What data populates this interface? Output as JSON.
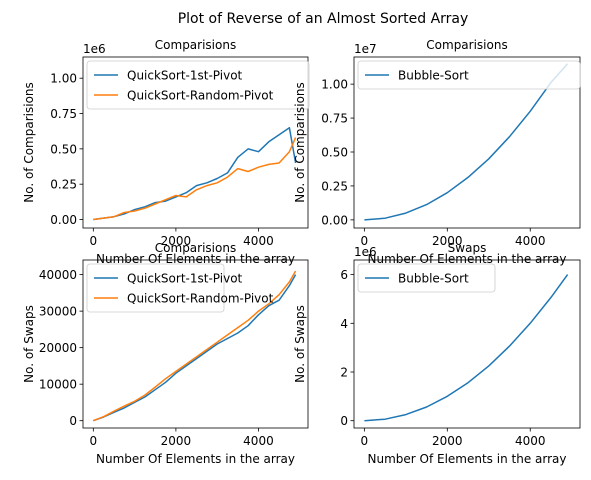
{
  "figure": {
    "suptitle": "Plot of Reverse of an Almost Sorted Array"
  },
  "colors": {
    "series_1": "#1f77b4",
    "series_2": "#ff7f0e"
  },
  "chart_data": [
    {
      "type": "line",
      "title": "Comparisions",
      "xlabel": "Number Of Elements in the array",
      "ylabel": "No. of Comparisions",
      "offset_text": "1e6",
      "xlim": [
        -250,
        5200
      ],
      "ylim": [
        -0.06,
        1.15
      ],
      "xticks": [
        0,
        2000,
        4000
      ],
      "xtick_labels": [
        "0",
        "2000",
        "4000"
      ],
      "yticks": [
        0,
        0.25,
        0.5,
        0.75,
        1.0
      ],
      "ytick_labels": [
        "0.00",
        "0.25",
        "0.50",
        "0.75",
        "1.00"
      ],
      "grid": false,
      "legend": "upper left",
      "series": [
        {
          "name": "QuickSort-1st-Pivot",
          "color": "#1f77b4",
          "x": [
            0,
            250,
            500,
            750,
            1000,
            1250,
            1500,
            1750,
            2000,
            2250,
            2500,
            2750,
            3000,
            3250,
            3500,
            3750,
            4000,
            4250,
            4500,
            4750,
            4900
          ],
          "y": [
            0.0,
            0.01,
            0.02,
            0.04,
            0.07,
            0.09,
            0.12,
            0.13,
            0.16,
            0.19,
            0.24,
            0.26,
            0.29,
            0.33,
            0.44,
            0.5,
            0.48,
            0.55,
            0.6,
            0.65,
            0.4
          ]
        },
        {
          "name": "QuickSort-Random-Pivot",
          "color": "#ff7f0e",
          "x": [
            0,
            250,
            500,
            750,
            1000,
            1250,
            1500,
            1750,
            2000,
            2250,
            2500,
            2750,
            3000,
            3250,
            3500,
            3750,
            4000,
            4250,
            4500,
            4750,
            4900
          ],
          "y": [
            0.0,
            0.01,
            0.02,
            0.05,
            0.06,
            0.08,
            0.11,
            0.14,
            0.17,
            0.16,
            0.21,
            0.24,
            0.26,
            0.3,
            0.36,
            0.34,
            0.37,
            0.39,
            0.4,
            0.48,
            0.58
          ]
        }
      ]
    },
    {
      "type": "line",
      "title": "Comparisions",
      "xlabel": "Number Of Elements in the array",
      "ylabel": "No. of Comparisions",
      "offset_text": "1e7",
      "xlim": [
        -250,
        5200
      ],
      "ylim": [
        -0.06,
        1.2
      ],
      "xticks": [
        0,
        2000,
        4000
      ],
      "xtick_labels": [
        "0",
        "2000",
        "4000"
      ],
      "yticks": [
        0,
        0.25,
        0.5,
        0.75,
        1.0
      ],
      "ytick_labels": [
        "0.00",
        "0.25",
        "0.50",
        "0.75",
        "1.00"
      ],
      "grid": false,
      "legend": "upper left",
      "series": [
        {
          "name": "Bubble-Sort",
          "color": "#1f77b4",
          "x": [
            0,
            500,
            1000,
            1500,
            2000,
            2500,
            3000,
            3500,
            4000,
            4500,
            4900
          ],
          "y": [
            0.0,
            0.0125,
            0.05,
            0.1125,
            0.2,
            0.3125,
            0.45,
            0.6125,
            0.8,
            1.0125,
            1.15
          ]
        }
      ]
    },
    {
      "type": "line",
      "title": "Comparisions",
      "xlabel": "Number Of Elements in the array",
      "ylabel": "No. of Swaps",
      "offset_text": "",
      "xlim": [
        -250,
        5200
      ],
      "ylim": [
        -2000,
        44000
      ],
      "xticks": [
        0,
        2000,
        4000
      ],
      "xtick_labels": [
        "0",
        "2000",
        "4000"
      ],
      "yticks": [
        0,
        10000,
        20000,
        30000,
        40000
      ],
      "ytick_labels": [
        "0",
        "10000",
        "20000",
        "30000",
        "40000"
      ],
      "grid": false,
      "legend": "upper left",
      "series": [
        {
          "name": "QuickSort-1st-Pivot",
          "color": "#1f77b4",
          "x": [
            0,
            250,
            500,
            750,
            1000,
            1250,
            1500,
            1750,
            2000,
            2250,
            2500,
            2750,
            3000,
            3250,
            3500,
            3750,
            4000,
            4250,
            4500,
            4750,
            4900
          ],
          "y": [
            0,
            1000,
            2300,
            3500,
            5000,
            6500,
            8500,
            10500,
            13000,
            15000,
            17000,
            19000,
            21000,
            22500,
            24000,
            26000,
            29000,
            31500,
            33000,
            37000,
            40000
          ]
        },
        {
          "name": "QuickSort-Random-Pivot",
          "color": "#ff7f0e",
          "x": [
            0,
            250,
            500,
            750,
            1000,
            1250,
            1500,
            1750,
            2000,
            2250,
            2500,
            2750,
            3000,
            3250,
            3500,
            3750,
            4000,
            4250,
            4500,
            4750,
            4900
          ],
          "y": [
            0,
            1100,
            2600,
            4000,
            5300,
            7000,
            9200,
            11500,
            13500,
            15500,
            17500,
            19500,
            21500,
            23500,
            25500,
            27500,
            30000,
            32000,
            34500,
            38000,
            41000
          ]
        }
      ]
    },
    {
      "type": "line",
      "title": "Swaps",
      "xlabel": "Number Of Elements in the array",
      "ylabel": "No. of Swaps",
      "offset_text": "1e6",
      "xlim": [
        -250,
        5200
      ],
      "ylim": [
        -0.3,
        6.6
      ],
      "xticks": [
        0,
        2000,
        4000
      ],
      "xtick_labels": [
        "0",
        "2000",
        "4000"
      ],
      "yticks": [
        0,
        2,
        4,
        6
      ],
      "ytick_labels": [
        "0",
        "2",
        "4",
        "6"
      ],
      "grid": false,
      "legend": "upper left",
      "series": [
        {
          "name": "Bubble-Sort",
          "color": "#1f77b4",
          "x": [
            0,
            500,
            1000,
            1500,
            2000,
            2500,
            3000,
            3500,
            4000,
            4500,
            4900
          ],
          "y": [
            0.0,
            0.0625,
            0.25,
            0.5625,
            1.0,
            1.5625,
            2.25,
            3.0625,
            4.0,
            5.0625,
            6.0
          ]
        }
      ]
    }
  ]
}
